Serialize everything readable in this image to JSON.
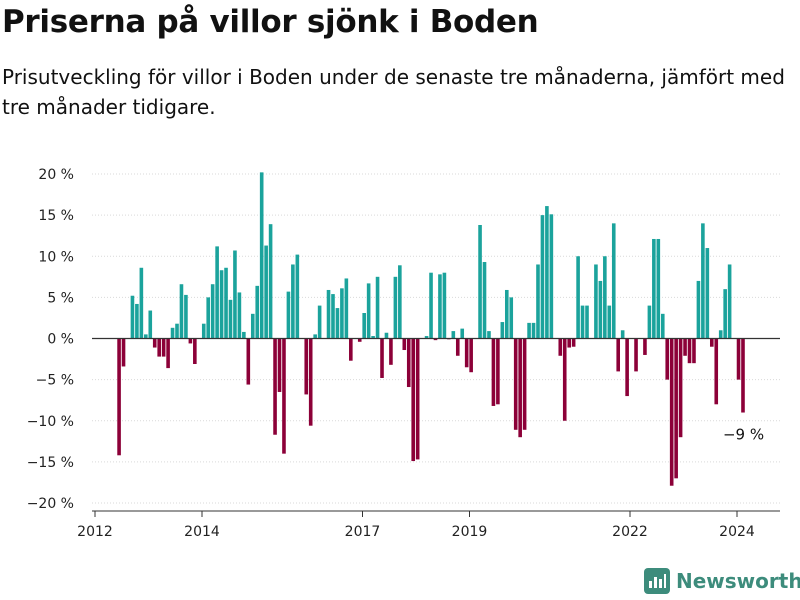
{
  "title": "Priserna på villor sjönk i Boden",
  "subtitle": "Prisutveckling för villor i Boden under de senaste tre månaderna, jämfört med tre månader tidigare.",
  "brand": "Newsworthy",
  "colors": {
    "positive": "#1ba39c",
    "negative": "#8c0038",
    "axis": "#333333",
    "grid": "#d9d9d9"
  },
  "chart_data": {
    "type": "bar",
    "title": "Priserna på villor sjönk i Boden",
    "xlabel": "",
    "ylabel": "",
    "unit": "%",
    "ylim": [
      -20,
      20
    ],
    "y_ticks": [
      20,
      15,
      10,
      5,
      0,
      -5,
      -10,
      -15,
      -20
    ],
    "y_tick_labels": [
      "20 %",
      "15 %",
      "10 %",
      "5 %",
      "0 %",
      "−5 %",
      "−10 %",
      "−15 %",
      "−20 %"
    ],
    "x_ticks": [
      {
        "label": "2012",
        "year": 2012
      },
      {
        "label": "2014",
        "year": 2014
      },
      {
        "label": "2017",
        "year": 2017
      },
      {
        "label": "2019",
        "year": 2019
      },
      {
        "label": "2022",
        "year": 2022
      },
      {
        "label": "2024",
        "year": 2024
      }
    ],
    "start": 2012.45,
    "step": 0.0833,
    "values": [
      -14.2,
      -3.4,
      0,
      5.2,
      4.2,
      8.6,
      0.5,
      3.4,
      -1.1,
      -2.2,
      -2.2,
      -3.6,
      1.3,
      1.8,
      6.6,
      5.3,
      -0.6,
      -3.1,
      0,
      1.8,
      5.0,
      6.6,
      11.2,
      8.3,
      8.6,
      4.7,
      10.7,
      5.6,
      0.8,
      -5.6,
      3.0,
      6.4,
      20.2,
      11.3,
      13.9,
      -11.7,
      -6.5,
      -14.0,
      5.7,
      9.0,
      10.2,
      0,
      -6.8,
      -10.6,
      0.5,
      4.0,
      0,
      5.9,
      5.4,
      3.7,
      6.1,
      7.3,
      -2.7,
      0,
      -0.4,
      3.1,
      6.7,
      0.3,
      7.5,
      -4.8,
      0.7,
      -3.2,
      7.5,
      8.9,
      -1.4,
      -5.9,
      -14.9,
      -14.7,
      0,
      0.3,
      8.0,
      -0.2,
      7.8,
      8.0,
      -0.1,
      0.9,
      -2.1,
      1.2,
      -3.5,
      -4.1,
      0,
      13.8,
      9.3,
      0.9,
      -8.2,
      -8.0,
      2.0,
      5.9,
      5.0,
      -11.1,
      -12.0,
      -11.1,
      1.9,
      1.9,
      9.0,
      15.0,
      16.1,
      15.1,
      0,
      -2.1,
      -10.0,
      -1.1,
      -1.0,
      10.0,
      4.0,
      4.0,
      0,
      9.0,
      7.0,
      10.0,
      4.0,
      14.0,
      -4.0,
      1.0,
      -7.0,
      0,
      -4.0,
      0,
      -2.0,
      4.0,
      12.1,
      12.1,
      3.0,
      -5.0,
      -17.9,
      -17.0,
      -12.0,
      -2.1,
      -3.0,
      -3.0,
      7.0,
      14.0,
      11.0,
      -1.0,
      -8.0,
      1.0,
      6.0,
      9.0,
      0,
      -5.0,
      -9.0
    ],
    "annotations": [
      {
        "text": "−9 %",
        "target": "last"
      }
    ]
  }
}
